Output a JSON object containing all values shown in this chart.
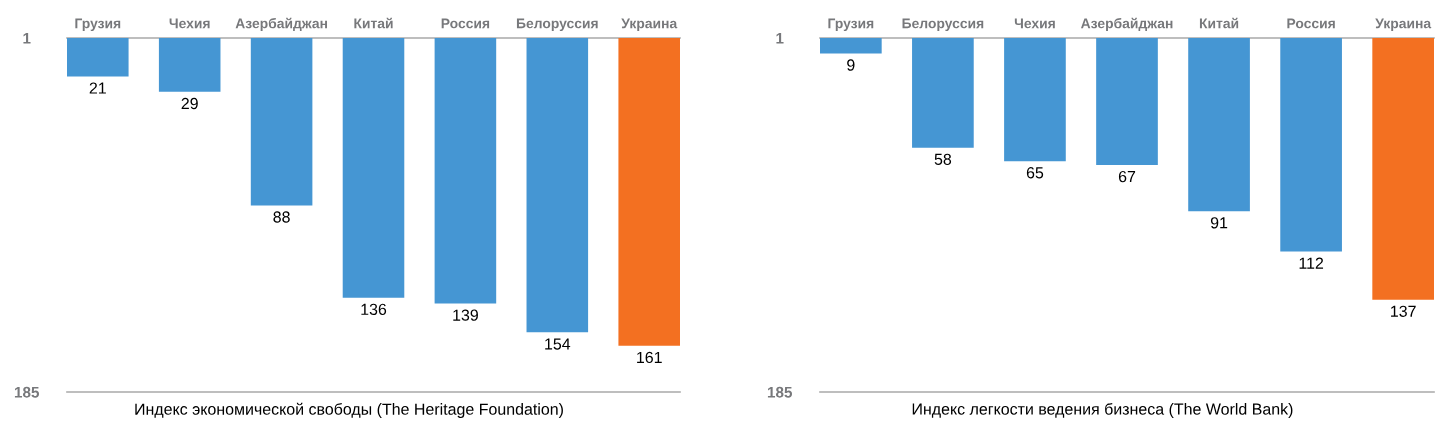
{
  "chart_data": [
    {
      "type": "bar",
      "categories": [
        "Грузия",
        "Чехия",
        "Азербайджан",
        "Китай",
        "Россия",
        "Белоруссия",
        "Украина"
      ],
      "values": [
        21,
        29,
        88,
        136,
        139,
        154,
        161
      ],
      "colors": [
        "#4596d3",
        "#4596d3",
        "#4596d3",
        "#4596d3",
        "#4596d3",
        "#4596d3",
        "#f37021"
      ],
      "xlabel": "Индекс экономической свободы (The Heritage Foundation)",
      "ylim": [
        185,
        1
      ],
      "yticks": [
        1,
        185
      ],
      "data_labels": true
    },
    {
      "type": "bar",
      "categories": [
        "Грузия",
        "Белоруссия",
        "Чехия",
        "Азербайджан",
        "Китай",
        "Россия",
        "Украина"
      ],
      "values": [
        9,
        58,
        65,
        67,
        91,
        112,
        137
      ],
      "colors": [
        "#4596d3",
        "#4596d3",
        "#4596d3",
        "#4596d3",
        "#4596d3",
        "#4596d3",
        "#f37021"
      ],
      "xlabel": "Индекс легкости ведения бизнеса (The World Bank)",
      "ylim": [
        185,
        1
      ],
      "yticks": [
        1,
        185
      ],
      "data_labels": true
    }
  ]
}
